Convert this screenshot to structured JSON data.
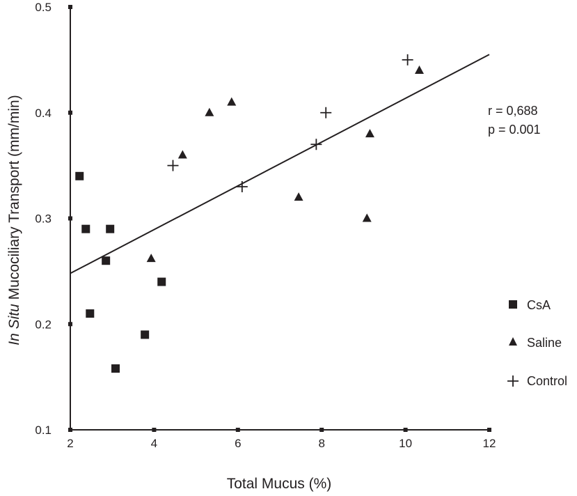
{
  "chart_data": {
    "type": "scatter",
    "title": "",
    "xlabel": "Total Mucus (%)",
    "ylabel_prefix": "In Situ",
    "ylabel_rest": " Mucociliary Transport (mm/min)",
    "xlim": [
      2,
      12
    ],
    "ylim": [
      0.1,
      0.5
    ],
    "xticks": [
      2,
      4,
      6,
      8,
      10,
      12
    ],
    "yticks": [
      0.1,
      0.2,
      0.3,
      0.4,
      0.5
    ],
    "xtick_labels": [
      "2",
      "4",
      "6",
      "8",
      "10",
      "12"
    ],
    "ytick_labels": [
      "0.1",
      "0.2",
      "0.3",
      "0.4",
      "0.5"
    ],
    "grid": false,
    "legend_position": "right",
    "colors": {
      "ink": "#231f20"
    },
    "series": [
      {
        "name": "CsA",
        "marker": "square",
        "points": [
          [
            2.22,
            0.34
          ],
          [
            2.37,
            0.29
          ],
          [
            2.95,
            0.29
          ],
          [
            2.85,
            0.26
          ],
          [
            2.47,
            0.21
          ],
          [
            4.18,
            0.24
          ],
          [
            3.78,
            0.19
          ],
          [
            3.08,
            0.158
          ]
        ]
      },
      {
        "name": "Saline",
        "marker": "triangle",
        "points": [
          [
            3.93,
            0.262
          ],
          [
            4.68,
            0.36
          ],
          [
            5.32,
            0.4
          ],
          [
            5.85,
            0.41
          ],
          [
            7.45,
            0.32
          ],
          [
            9.08,
            0.3
          ],
          [
            9.15,
            0.38
          ],
          [
            10.33,
            0.44
          ]
        ]
      },
      {
        "name": "Control",
        "marker": "plus",
        "points": [
          [
            4.45,
            0.35
          ],
          [
            6.1,
            0.33
          ],
          [
            7.87,
            0.37
          ],
          [
            8.1,
            0.4
          ],
          [
            10.05,
            0.45
          ]
        ]
      }
    ],
    "regression_line": {
      "x": [
        2,
        12
      ],
      "y": [
        0.248,
        0.455
      ]
    },
    "annotations": [
      "r = 0,688",
      "p = 0.001"
    ]
  }
}
